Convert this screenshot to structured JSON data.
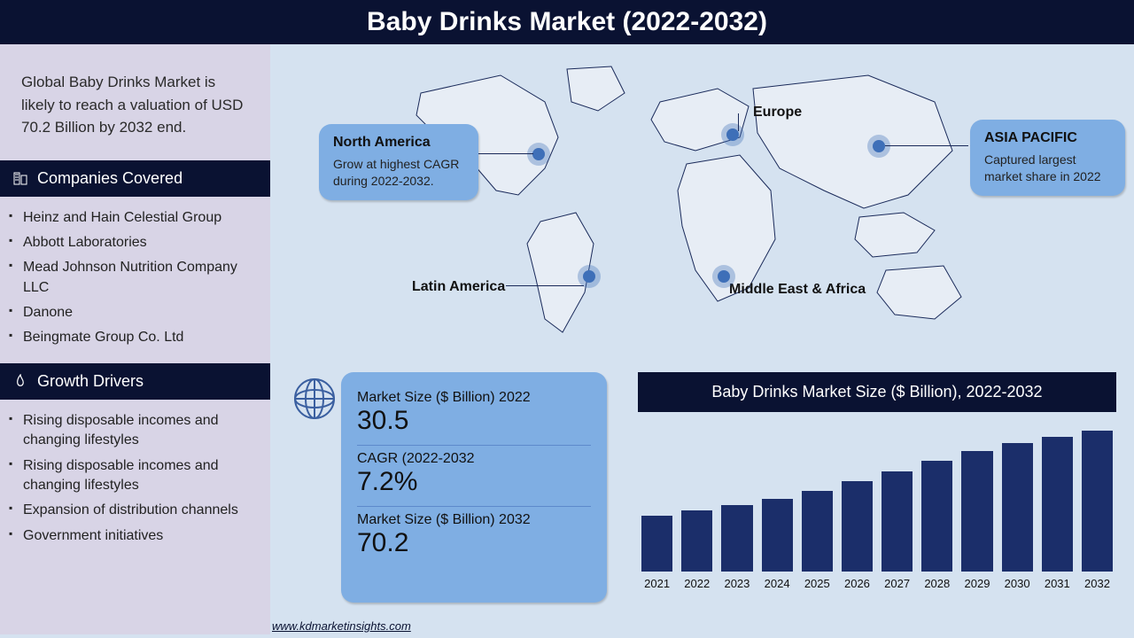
{
  "header": {
    "title": "Baby Drinks Market (2022-2032)"
  },
  "intro": "Global Baby Drinks Market is likely to reach a valuation of USD 70.2 Billion by 2032 end.",
  "sections": {
    "companies": {
      "heading": "Companies Covered",
      "items": [
        "Heinz and Hain Celestial Group",
        "Abbott Laboratories",
        "Mead Johnson Nutrition Company LLC",
        "Danone",
        "Beingmate Group Co. Ltd"
      ]
    },
    "drivers": {
      "heading": "Growth Drivers",
      "items": [
        "Rising disposable incomes and changing lifestyles",
        "Rising disposable incomes and changing lifestyles",
        "Expansion of distribution channels",
        "Government initiatives"
      ]
    }
  },
  "regions": {
    "north_america": {
      "title": "North America",
      "desc": "Grow at highest CAGR during 2022-2032."
    },
    "asia_pacific": {
      "title": "ASIA PACIFIC",
      "desc": "Captured largest market share in 2022"
    },
    "europe": {
      "label": "Europe"
    },
    "latam": {
      "label": "Latin America"
    },
    "mea": {
      "label": "Middle East & Africa"
    }
  },
  "metrics": {
    "m1": {
      "label": "Market Size ($ Billion) 2022",
      "value": "30.5"
    },
    "m2": {
      "label": "CAGR (2022-2032",
      "value": "7.2%"
    },
    "m3": {
      "label": "Market Size ($ Billion) 2032",
      "value": "70.2"
    }
  },
  "chart": {
    "type": "bar",
    "title": "Baby Drinks Market Size ($ Billion), 2022-2032",
    "categories": [
      "2021",
      "2022",
      "2023",
      "2024",
      "2025",
      "2026",
      "2027",
      "2028",
      "2029",
      "2030",
      "2031",
      "2032"
    ],
    "values": [
      28,
      30.5,
      33,
      36,
      40,
      45,
      50,
      55,
      60,
      64,
      67,
      70.2
    ],
    "ylim": [
      0,
      75
    ],
    "bar_color": "#1b2e6a",
    "background": "#d5e2f0",
    "label_fontsize": 13
  },
  "styling": {
    "header_bg": "#0a1232",
    "sidebar_bg": "#d8d4e6",
    "main_bg": "#d5e2f0",
    "box_bg": "#7faee3",
    "marker_color": "#3e6fb8"
  },
  "source": "www.kdmarketinsights.com"
}
